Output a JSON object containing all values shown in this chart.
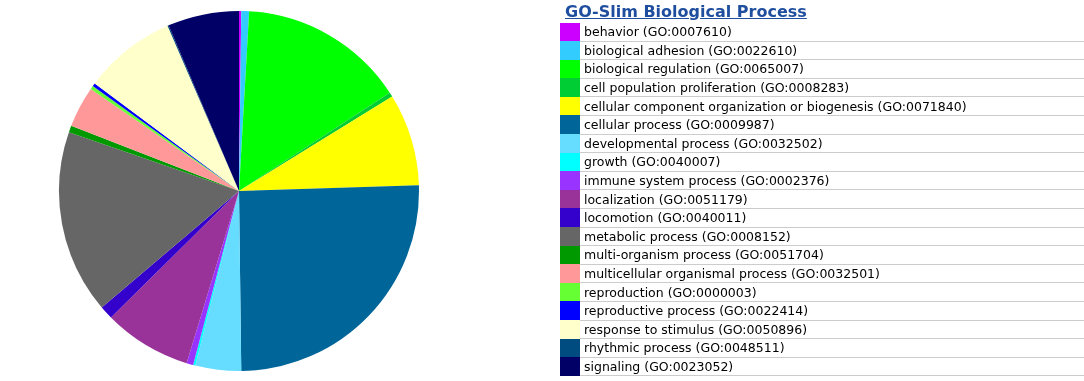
{
  "chart_data": {
    "type": "pie",
    "title": "GO-Slim Biological Process",
    "legend": "right",
    "categories": [
      "behavior (GO:0007610)",
      "biological adhesion (GO:0022610)",
      "biological regulation (GO:0065007)",
      "cell population proliferation (GO:0008283)",
      "cellular component organization or biogenesis (GO:0071840)",
      "cellular process (GO:0009987)",
      "developmental process (GO:0032502)",
      "growth (GO:0040007)",
      "immune system process (GO:0002376)",
      "localization (GO:0051179)",
      "locomotion (GO:0040011)",
      "metabolic process (GO:0008152)",
      "multi-organism process (GO:0051704)",
      "multicellular organismal process (GO:0032501)",
      "reproduction (GO:0000003)",
      "reproductive process (GO:0022414)",
      "response to stimulus (GO:0050896)",
      "rhythmic process (GO:0048511)",
      "signaling (GO:0023052)"
    ],
    "values": [
      0.2,
      0.7,
      14.9,
      0.4,
      8.3,
      25.3,
      4.1,
      0.2,
      0.6,
      7.9,
      1.2,
      16.5,
      0.6,
      3.7,
      0.3,
      0.3,
      8.3,
      0.1,
      6.4
    ],
    "colors": [
      "#cc00ff",
      "#33ccff",
      "#00ff00",
      "#00cc33",
      "#ffff00",
      "#006699",
      "#66ddff",
      "#00ffff",
      "#9933ff",
      "#993399",
      "#3300cc",
      "#666666",
      "#009900",
      "#ff9999",
      "#66ff33",
      "#0000ff",
      "#ffffcc",
      "#004c80",
      "#000066"
    ]
  }
}
